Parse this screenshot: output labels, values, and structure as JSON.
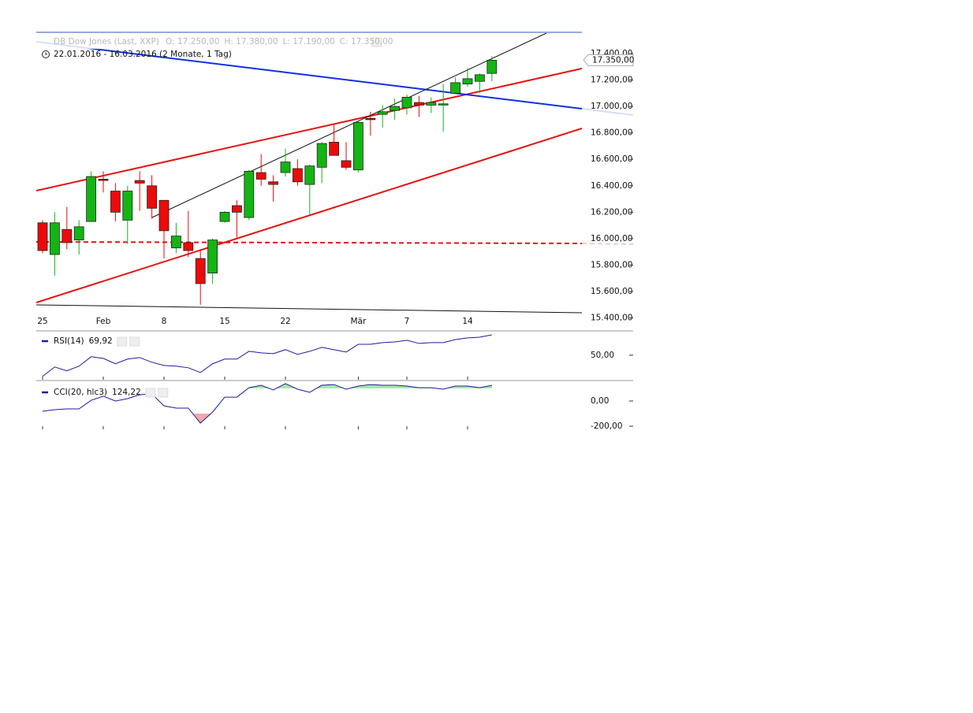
{
  "chart_data": [
    {
      "type": "candlestick",
      "title": "DB Dow Jones (Last, XXP)",
      "ohlc_labels": [
        "O: 17.250,00",
        "H: 17.380,00",
        "L: 17.190,00",
        "C: 17.350,00"
      ],
      "subtitle": "22.01.2016 - 16.03.2016 (2 Monate, 1 Tag)",
      "categories": [
        "25",
        null,
        null,
        null,
        null,
        "Feb",
        null,
        null,
        null,
        null,
        "8",
        null,
        null,
        null,
        null,
        "15",
        null,
        null,
        null,
        null,
        "22",
        null,
        null,
        null,
        null,
        null,
        "Mär",
        null,
        null,
        null,
        "7",
        null,
        null,
        null,
        null,
        "14",
        null,
        null
      ],
      "open": [
        16120,
        15880,
        16070,
        15990,
        16130,
        16450,
        16360,
        16140,
        16440,
        16400,
        16290,
        15930,
        15970,
        15850,
        15740,
        16130,
        16250,
        16160,
        16500,
        16430,
        16500,
        16530,
        16410,
        16540,
        16730,
        16590,
        16520,
        16910,
        16940,
        16970,
        16990,
        17030,
        17010,
        17020,
        17100,
        17170,
        17190,
        17250
      ],
      "high": [
        16140,
        16200,
        16240,
        16140,
        16510,
        16510,
        16420,
        16400,
        16510,
        16480,
        16290,
        16120,
        16210,
        15920,
        16000,
        16210,
        16290,
        16520,
        16640,
        16480,
        16680,
        16600,
        16560,
        16730,
        16860,
        16730,
        16890,
        16960,
        17010,
        17060,
        17090,
        17080,
        17070,
        17170,
        17220,
        17290,
        17250,
        17380
      ],
      "low": [
        15890,
        15720,
        15920,
        15880,
        16130,
        16350,
        16130,
        15960,
        16210,
        16150,
        15850,
        15890,
        15860,
        15500,
        15660,
        16120,
        16010,
        16140,
        16400,
        16280,
        16470,
        16400,
        16180,
        16420,
        16630,
        16520,
        16500,
        16780,
        16840,
        16900,
        16940,
        16920,
        16950,
        16810,
        17100,
        17150,
        17100,
        17190
      ],
      "close": [
        15910,
        16120,
        15970,
        16090,
        16470,
        16440,
        16200,
        16360,
        16420,
        16230,
        16060,
        16020,
        15910,
        15660,
        15990,
        16200,
        16200,
        16510,
        16450,
        16410,
        16580,
        16430,
        16550,
        16720,
        16630,
        16540,
        16880,
        16900,
        16960,
        17000,
        17070,
        17010,
        17030,
        17020,
        17180,
        17210,
        17240,
        17350
      ],
      "last_label": "17.350,00",
      "up_color": "#14b414",
      "down_color": "#ec0a0a",
      "ylim": [
        15350,
        17555
      ],
      "yticks": [
        {
          "value": 15400,
          "label": "15.400,00"
        },
        {
          "value": 15600,
          "label": "15.600,00"
        },
        {
          "value": 15800,
          "label": "15.800,00"
        },
        {
          "value": 16000,
          "label": "16.000,00"
        },
        {
          "value": 16200,
          "label": "16.200,00"
        },
        {
          "value": 16400,
          "label": "16.400,00"
        },
        {
          "value": 16600,
          "label": "16.600,00"
        },
        {
          "value": 16800,
          "label": "16.800,00"
        },
        {
          "value": 17000,
          "label": "17.000,00"
        },
        {
          "value": 17200,
          "label": "17.200,00"
        },
        {
          "value": 17400,
          "label": "17.400,00"
        }
      ]
    },
    {
      "type": "line",
      "series": [
        {
          "name": "RSI(14)",
          "color": "#1c1ca0",
          "last_value_label": "69,92",
          "values": [
            29.3,
            38.5,
            34.7,
            39.3,
            48.5,
            46.9,
            41.6,
            46.2,
            47.7,
            43.1,
            40.0,
            39.3,
            37.7,
            33.1,
            41.6,
            46.2,
            46.2,
            53.8,
            52.3,
            51.5,
            55.4,
            50.8,
            53.8,
            57.7,
            55.4,
            53.1,
            60.7,
            60.7,
            62.3,
            63.0,
            64.6,
            61.5,
            62.3,
            62.3,
            65.3,
            66.9,
            67.6,
            69.92
          ]
        }
      ],
      "ylim": [
        26,
        73
      ],
      "yticks": [
        {
          "value": 50,
          "label": "50,00"
        }
      ]
    },
    {
      "type": "line",
      "series": [
        {
          "name": "CCI(20, hlc3)",
          "color": "#1c1ca0",
          "last_value_label": "124,22",
          "values": [
            -81,
            -69,
            -62.5,
            -62.5,
            6,
            38,
            0,
            19,
            50,
            56,
            -38,
            -56,
            -56,
            -175,
            -88,
            31,
            31,
            106,
            125,
            88,
            138,
            94,
            69,
            125,
            131,
            94,
            119,
            131,
            125,
            125,
            119,
            106,
            106,
            94,
            119,
            119,
            106,
            124.22
          ]
        }
      ],
      "overbought": 100,
      "oversold": -100,
      "overbought_color": "#a8e8a8",
      "oversold_color": "#f0a8a8",
      "ylim": [
        -225,
        144
      ],
      "yticks": [
        {
          "value": 0,
          "label": "0,00"
        },
        {
          "value": -200,
          "label": "-200,00"
        }
      ]
    }
  ]
}
